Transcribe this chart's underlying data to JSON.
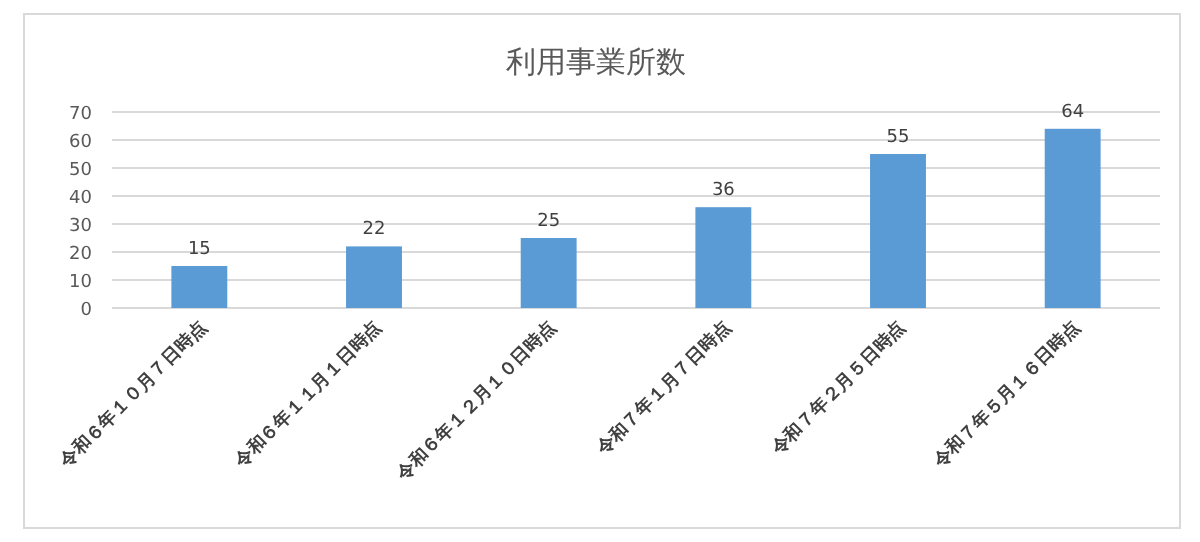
{
  "chart_data": {
    "type": "bar",
    "title": "利用事業所数",
    "categories": [
      "令和６年１０月７日時点",
      "令和６年１１月１日時点",
      "令和６年１２月１０日時点",
      "令和７年１月７日時点",
      "令和７年２月５日時点",
      "令和７年５月１６日時点"
    ],
    "values": [
      15,
      22,
      25,
      36,
      55,
      64
    ],
    "color": "#5b9bd5",
    "ylim": [
      0,
      70
    ],
    "yticks": [
      0,
      10,
      20,
      30,
      40,
      50,
      60,
      70
    ],
    "grid": "y",
    "data_labels": true
  }
}
